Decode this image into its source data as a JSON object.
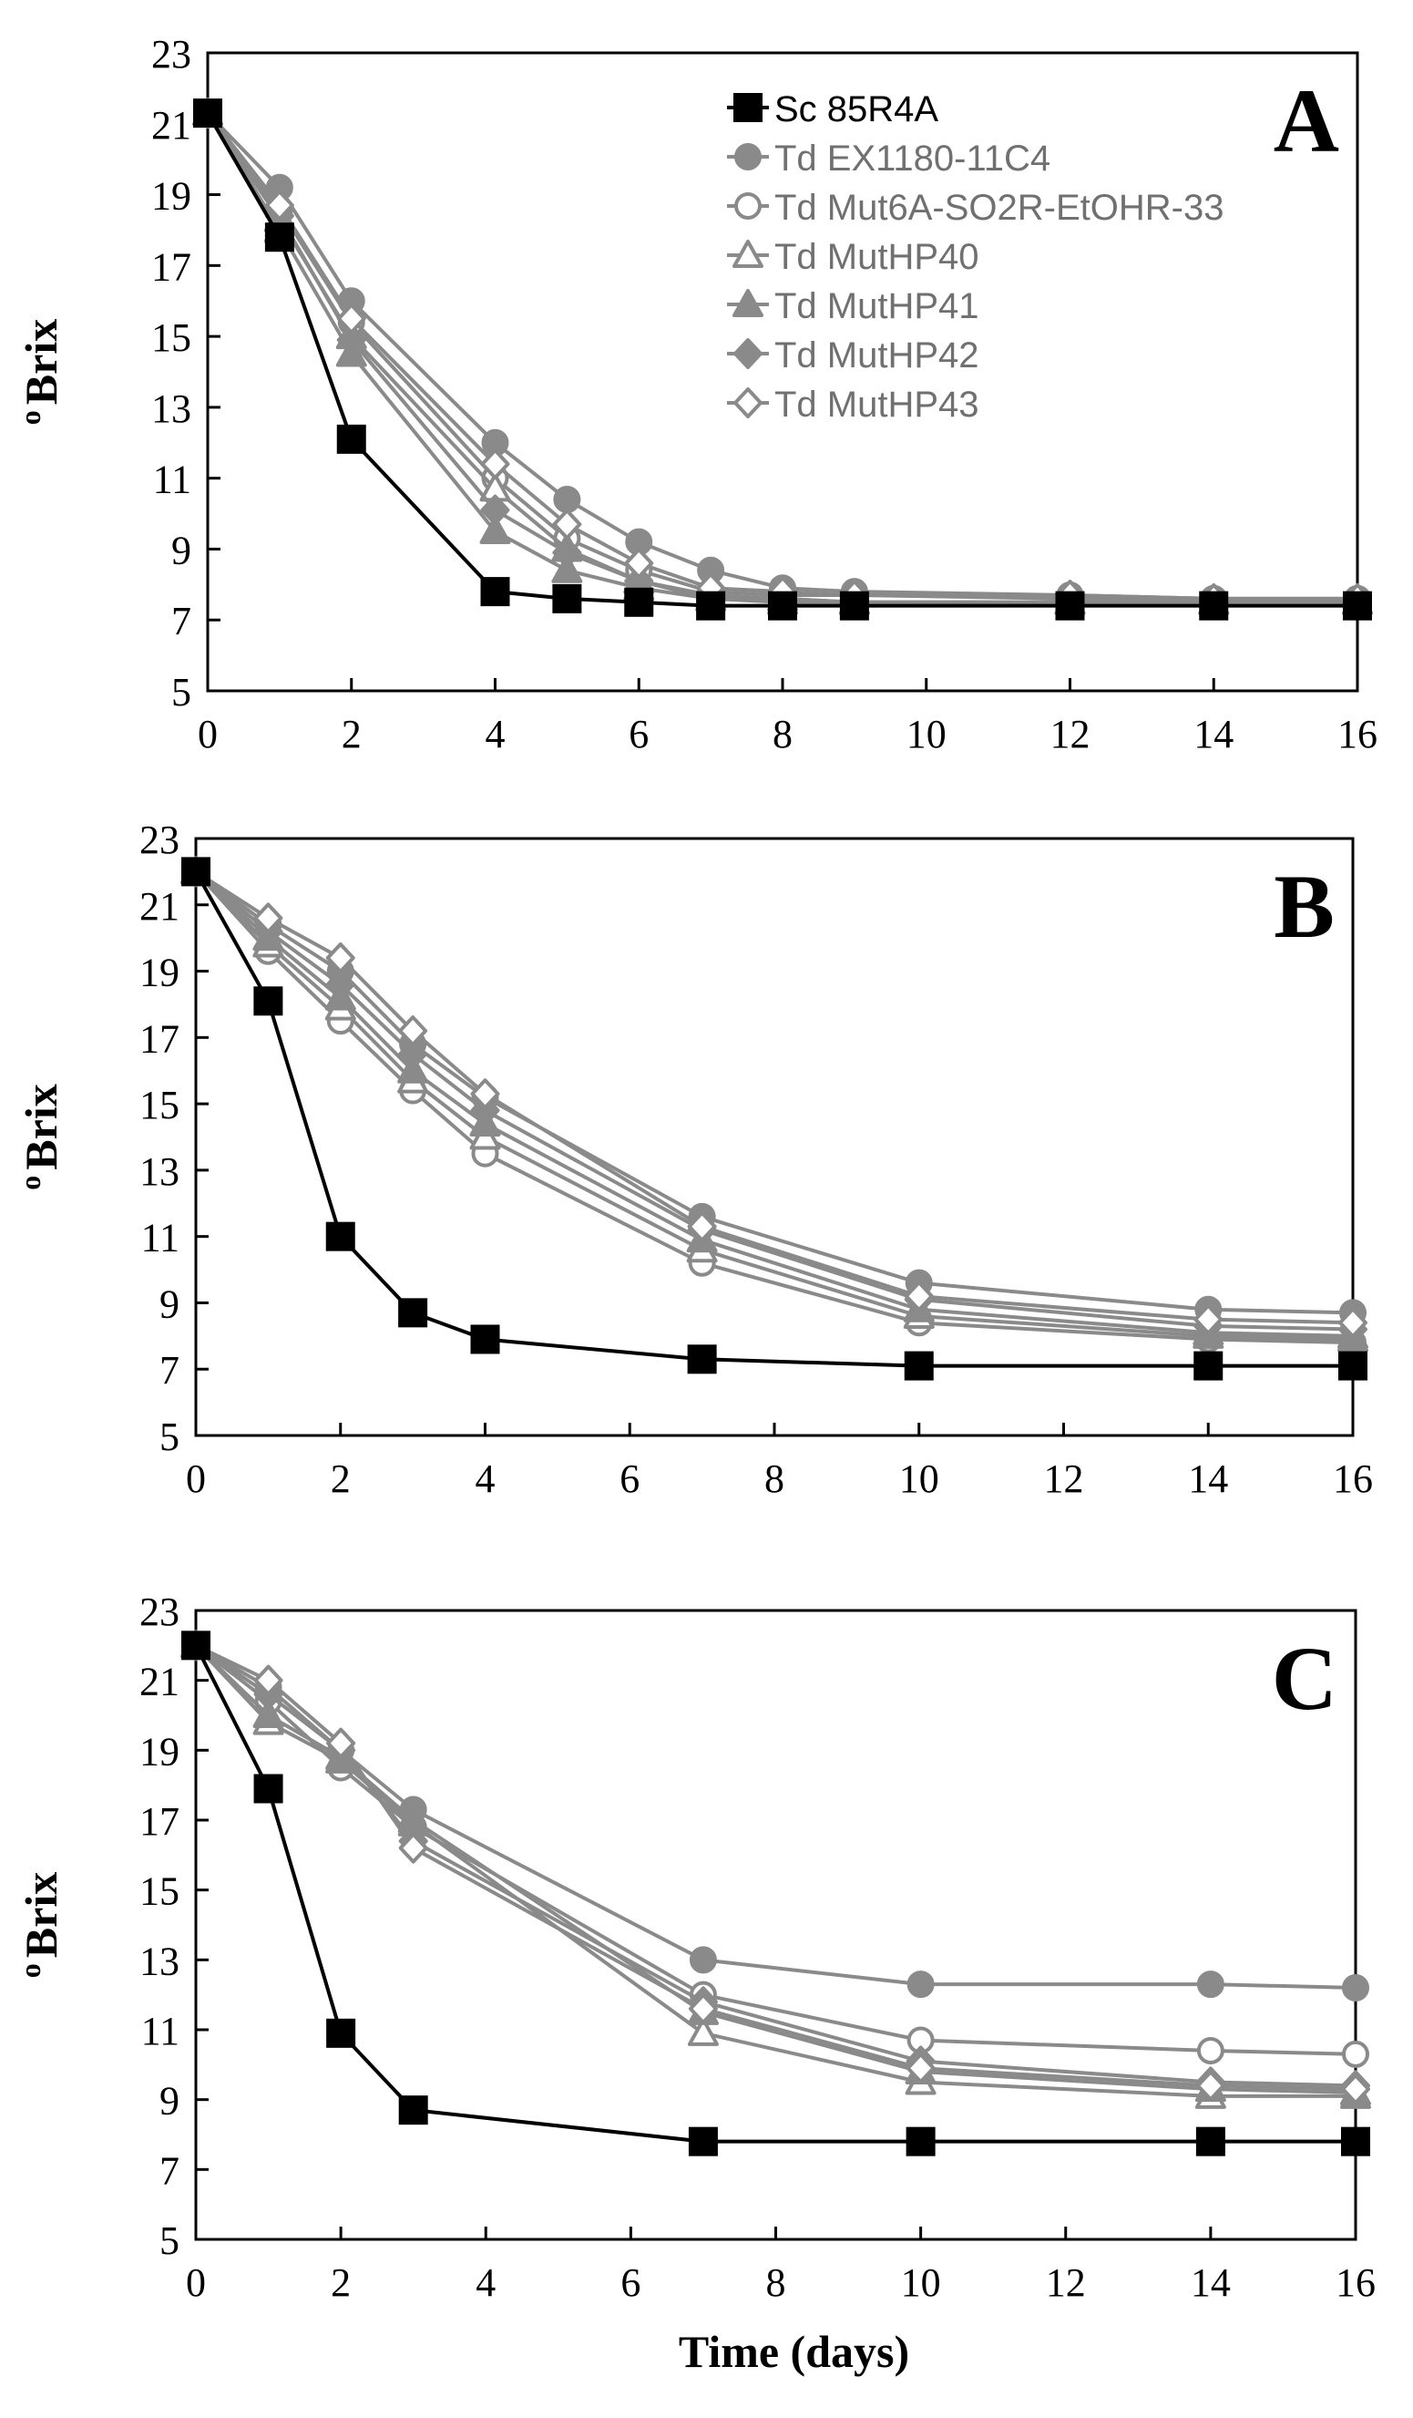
{
  "figure": {
    "xlabel": "Time (days)",
    "ylabel_prefix": "o",
    "ylabel_main": "Brix"
  },
  "styles": {
    "Sc 85R4A": {
      "marker": "square",
      "filled": true,
      "color": "#000000"
    },
    "Td EX1180-11C4": {
      "marker": "circle",
      "filled": true,
      "color": "#8a8a8a"
    },
    "Td Mut6A-SO2R-EtOHR-33": {
      "marker": "circle",
      "filled": false,
      "color": "#8a8a8a"
    },
    "Td MutHP40": {
      "marker": "triangle",
      "filled": false,
      "color": "#8a8a8a"
    },
    "Td MutHP41": {
      "marker": "triangle",
      "filled": true,
      "color": "#8a8a8a"
    },
    "Td MutHP42": {
      "marker": "diamond",
      "filled": true,
      "color": "#8a8a8a"
    },
    "Td MutHP43": {
      "marker": "diamond",
      "filled": false,
      "color": "#8a8a8a"
    }
  },
  "chart_data": [
    {
      "type": "line",
      "panel_label": "A",
      "xlabel": "",
      "ylabel": "o Brix",
      "xlim": [
        0,
        16
      ],
      "ylim": [
        5,
        23
      ],
      "xticks": [
        0,
        2,
        4,
        6,
        8,
        10,
        12,
        14,
        16
      ],
      "yticks": [
        5,
        7,
        9,
        11,
        13,
        15,
        17,
        19,
        21,
        23
      ],
      "legend": [
        "Sc 85R4A",
        "Td EX1180-11C4",
        "Td Mut6A-SO2R-EtOHR-33",
        "Td MutHP40",
        "Td MutHP41",
        "Td MutHP42",
        "Td MutHP43"
      ],
      "legend_position": "top-right",
      "x": [
        0,
        1,
        2,
        4,
        5,
        6,
        7,
        8,
        9,
        12,
        14,
        16
      ],
      "series": [
        {
          "name": "Sc 85R4A",
          "values": [
            21.3,
            17.8,
            12.1,
            7.8,
            7.6,
            7.5,
            7.4,
            7.4,
            7.4,
            7.4,
            7.4,
            7.4
          ]
        },
        {
          "name": "Td EX1180-11C4",
          "values": [
            21.3,
            19.2,
            16.0,
            12.0,
            10.4,
            9.2,
            8.4,
            7.9,
            7.8,
            7.7,
            7.6,
            7.6
          ]
        },
        {
          "name": "Td Mut6A-SO2R-EtOHR-33",
          "values": [
            21.3,
            18.6,
            15.4,
            11.0,
            9.3,
            8.4,
            7.8,
            7.7,
            7.7,
            7.6,
            7.6,
            7.6
          ]
        },
        {
          "name": "Td MutHP40",
          "values": [
            21.3,
            18.3,
            15.0,
            10.7,
            9.0,
            8.1,
            7.7,
            7.6,
            7.5,
            7.5,
            7.5,
            7.5
          ]
        },
        {
          "name": "Td MutHP41",
          "values": [
            21.3,
            18.0,
            14.5,
            9.5,
            8.4,
            7.9,
            7.6,
            7.5,
            7.5,
            7.5,
            7.5,
            7.5
          ]
        },
        {
          "name": "Td MutHP42",
          "values": [
            21.3,
            18.4,
            14.9,
            10.1,
            8.9,
            8.1,
            7.6,
            7.6,
            7.5,
            7.5,
            7.5,
            7.5
          ]
        },
        {
          "name": "Td MutHP43",
          "values": [
            21.3,
            18.7,
            15.5,
            11.4,
            9.7,
            8.6,
            7.9,
            7.8,
            7.7,
            7.7,
            7.6,
            7.6
          ]
        }
      ]
    },
    {
      "type": "line",
      "panel_label": "B",
      "xlabel": "",
      "ylabel": "o Brix",
      "xlim": [
        0,
        16
      ],
      "ylim": [
        5,
        23
      ],
      "xticks": [
        0,
        2,
        4,
        6,
        8,
        10,
        12,
        14,
        16
      ],
      "yticks": [
        5,
        7,
        9,
        11,
        13,
        15,
        17,
        19,
        21,
        23
      ],
      "x": [
        0,
        1,
        2,
        3,
        4,
        7,
        10,
        14,
        16
      ],
      "series": [
        {
          "name": "Sc 85R4A",
          "values": [
            22.0,
            18.1,
            11.0,
            8.7,
            7.9,
            7.3,
            7.1,
            7.1,
            7.1
          ]
        },
        {
          "name": "Td EX1180-11C4",
          "values": [
            22.0,
            20.4,
            19.0,
            16.8,
            15.2,
            11.6,
            9.6,
            8.8,
            8.7
          ]
        },
        {
          "name": "Td Mut6A-SO2R-EtOHR-33",
          "values": [
            22.0,
            19.6,
            17.5,
            15.4,
            13.5,
            10.2,
            8.4,
            7.9,
            7.8
          ]
        },
        {
          "name": "Td MutHP40",
          "values": [
            22.0,
            19.8,
            17.9,
            15.7,
            14.0,
            10.6,
            8.6,
            8.0,
            7.9
          ]
        },
        {
          "name": "Td MutHP41",
          "values": [
            22.0,
            20.0,
            18.2,
            16.0,
            14.4,
            10.9,
            8.8,
            8.1,
            8.0
          ]
        },
        {
          "name": "Td MutHP42",
          "values": [
            22.0,
            20.2,
            18.6,
            16.5,
            14.8,
            11.2,
            9.1,
            8.3,
            8.2
          ]
        },
        {
          "name": "Td MutHP43",
          "values": [
            22.0,
            20.6,
            19.4,
            17.2,
            15.3,
            11.3,
            9.2,
            8.5,
            8.4
          ]
        }
      ]
    },
    {
      "type": "line",
      "panel_label": "C",
      "xlabel": "Time (days)",
      "ylabel": "o Brix",
      "xlim": [
        0,
        16
      ],
      "ylim": [
        5,
        23
      ],
      "xticks": [
        0,
        2,
        4,
        6,
        8,
        10,
        12,
        14,
        16
      ],
      "yticks": [
        5,
        7,
        9,
        11,
        13,
        15,
        17,
        19,
        21,
        23
      ],
      "x": [
        0,
        1,
        2,
        3,
        7,
        10,
        14,
        16
      ],
      "series": [
        {
          "name": "Sc 85R4A",
          "values": [
            22.0,
            17.9,
            10.9,
            8.7,
            7.8,
            7.8,
            7.8,
            7.8
          ]
        },
        {
          "name": "Td EX1180-11C4",
          "values": [
            22.0,
            20.8,
            19.0,
            17.3,
            13.0,
            12.3,
            12.3,
            12.2
          ]
        },
        {
          "name": "Td Mut6A-SO2R-EtOHR-33",
          "values": [
            22.0,
            20.4,
            18.5,
            16.8,
            12.0,
            10.7,
            10.4,
            10.3
          ]
        },
        {
          "name": "Td MutHP40",
          "values": [
            22.0,
            19.8,
            18.7,
            16.9,
            10.9,
            9.5,
            9.1,
            9.1
          ]
        },
        {
          "name": "Td MutHP41",
          "values": [
            22.0,
            20.0,
            18.8,
            17.0,
            11.5,
            9.8,
            9.3,
            9.2
          ]
        },
        {
          "name": "Td MutHP42",
          "values": [
            22.0,
            20.6,
            19.0,
            16.4,
            11.8,
            10.1,
            9.5,
            9.4
          ]
        },
        {
          "name": "Td MutHP43",
          "values": [
            22.0,
            21.0,
            19.2,
            16.2,
            11.6,
            9.9,
            9.4,
            9.3
          ]
        }
      ]
    }
  ]
}
